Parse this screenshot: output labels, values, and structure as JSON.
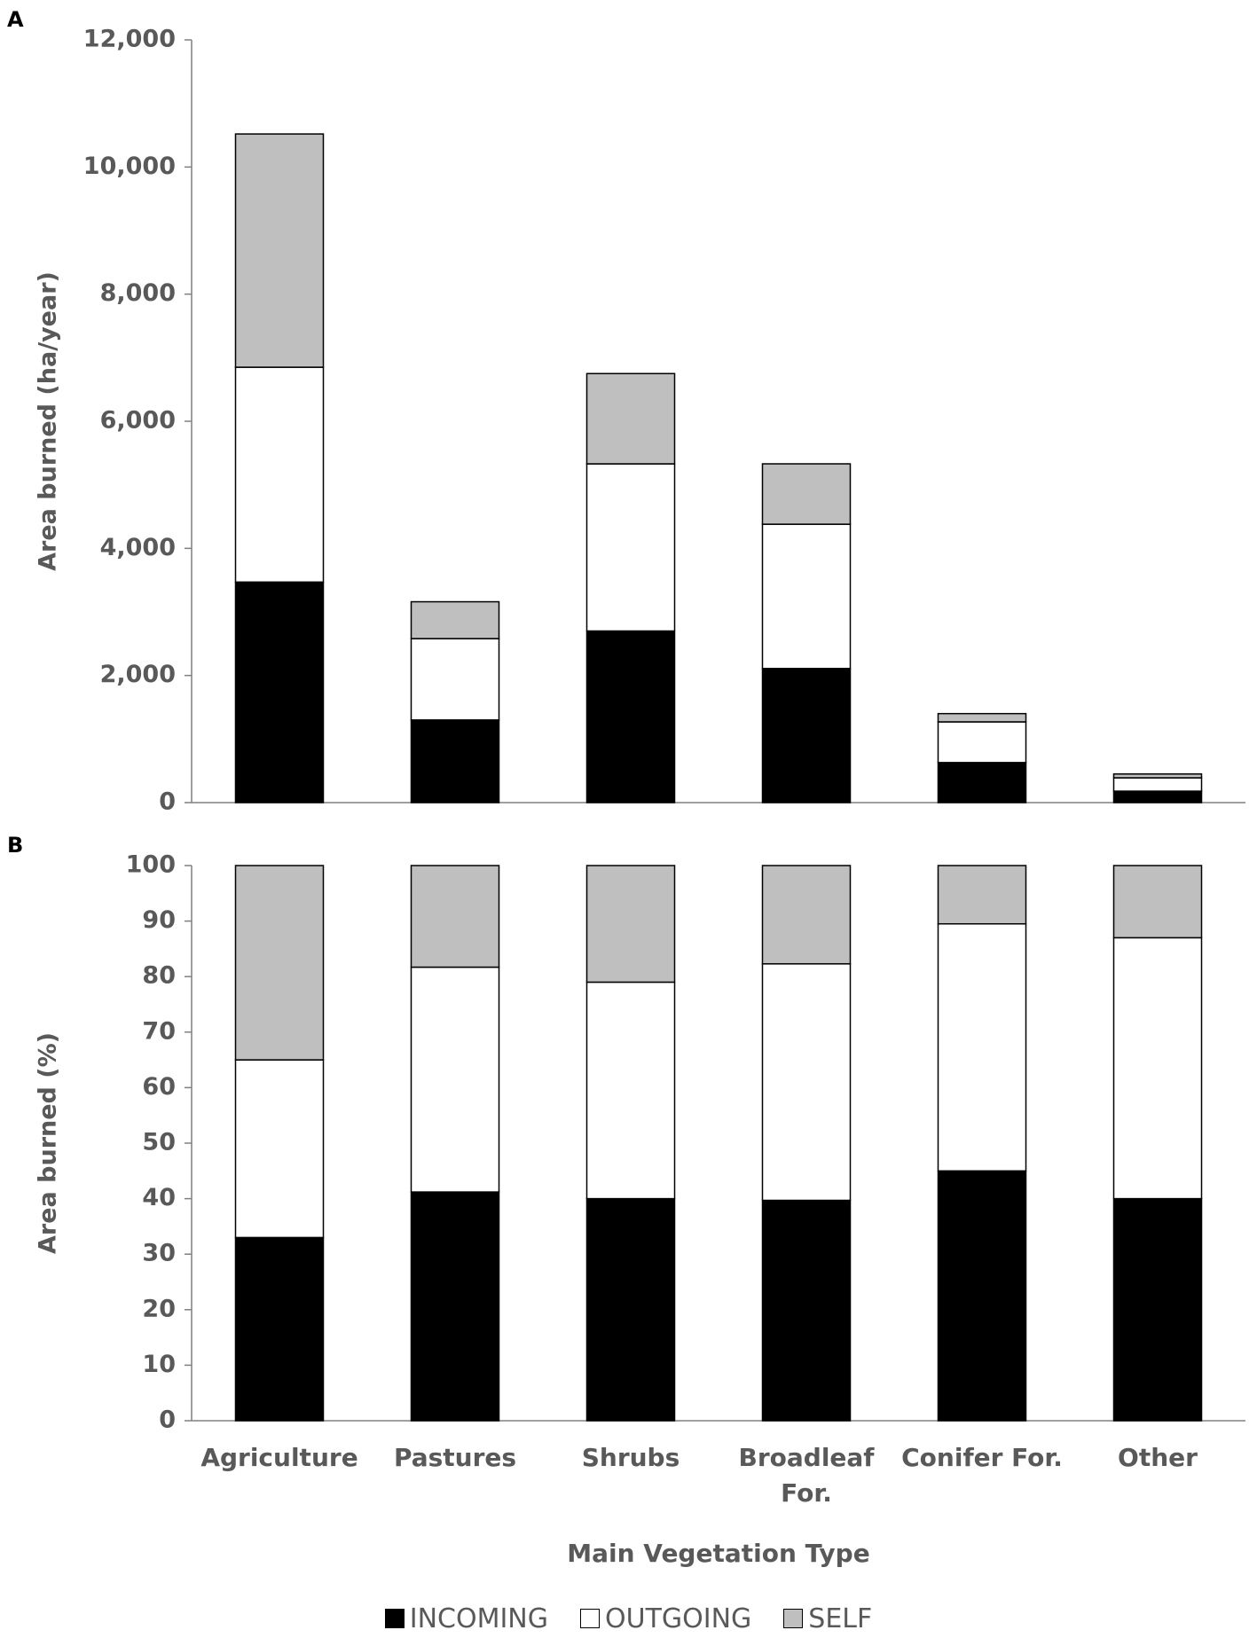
{
  "chart_data": [
    {
      "type": "bar",
      "stacked": true,
      "panel_label": "A",
      "y_label": "Area burned (ha/year)",
      "ylim": [
        0,
        12000
      ],
      "yticks": [
        0,
        {
          "value": 2000,
          "label": "2,000"
        },
        {
          "value": 4000,
          "label": "4,000"
        },
        {
          "value": 6000,
          "label": "6,000"
        },
        {
          "value": 8000,
          "label": "8,000"
        },
        {
          "value": 10000,
          "label": "10,000"
        },
        {
          "value": 12000,
          "label": "12,000"
        }
      ],
      "series": [
        {
          "color": "#000000",
          "values": [
            3470,
            1300,
            2700,
            2110,
            630,
            180
          ]
        },
        {
          "color": "#ffffff",
          "values": [
            3380,
            1280,
            2630,
            2270,
            640,
            210
          ]
        },
        {
          "color": "#bfbfbf",
          "values": [
            3670,
            580,
            1420,
            950,
            130,
            60
          ]
        }
      ]
    },
    {
      "type": "bar",
      "stacked": true,
      "panel_label": "B",
      "y_label": "Area burned (%)",
      "x_label": "Main Vegetation Type",
      "categories": [
        "Agriculture",
        "Pastures",
        "Shrubs",
        "Broadleaf For.",
        "Conifer For.",
        "Other"
      ],
      "ylim": [
        0,
        100
      ],
      "yticks": [
        0,
        10,
        20,
        30,
        40,
        50,
        60,
        70,
        80,
        90,
        100
      ],
      "legend": "bottom",
      "series": [
        {
          "name": "INCOMING",
          "color": "#000000",
          "values": [
            33,
            41.2,
            40,
            39.7,
            45,
            40
          ]
        },
        {
          "name": "OUTGOING",
          "color": "#ffffff",
          "values": [
            32,
            40.5,
            39,
            42.6,
            44.5,
            47
          ]
        },
        {
          "name": "SELF",
          "color": "#bfbfbf",
          "values": [
            35,
            18.3,
            21,
            17.7,
            10.5,
            13
          ]
        }
      ]
    }
  ]
}
